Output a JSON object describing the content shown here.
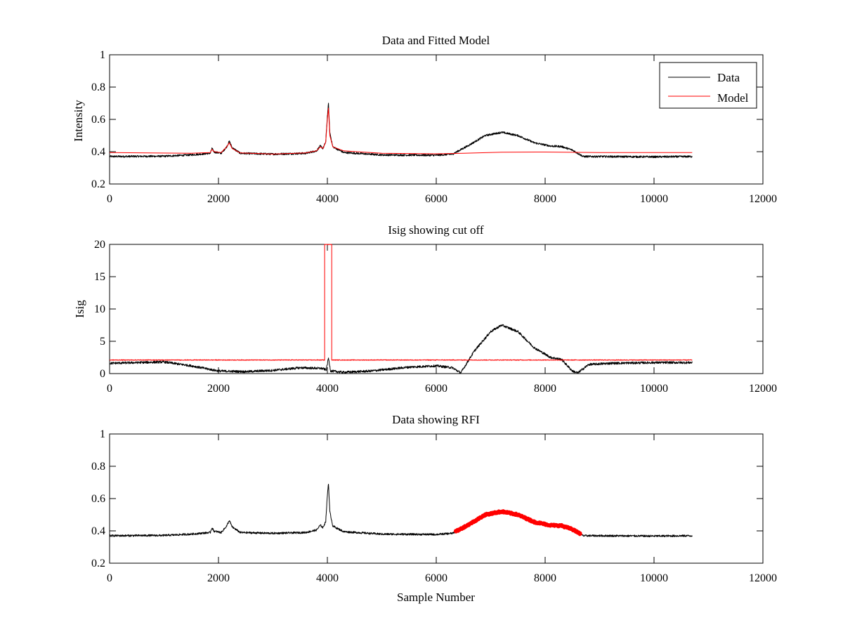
{
  "chart_data": [
    {
      "type": "line",
      "title": "Data and Fitted Model",
      "xlabel": "",
      "ylabel": "Intensity",
      "xlim": [
        0,
        12000
      ],
      "ylim": [
        0.2,
        1
      ],
      "xticks": [
        "0",
        "2000",
        "4000",
        "6000",
        "8000",
        "10000",
        "12000"
      ],
      "yticks": [
        "0.2",
        "0.4",
        "0.6",
        "0.8",
        "1"
      ],
      "legend": {
        "position": "top-right",
        "entries": [
          "Data",
          "Model"
        ]
      },
      "series": [
        {
          "name": "Data",
          "color": "#000000",
          "noise": 0.006,
          "points": [
            [
              0,
              0.37
            ],
            [
              1000,
              0.372
            ],
            [
              1500,
              0.38
            ],
            [
              1850,
              0.39
            ],
            [
              1880,
              0.42
            ],
            [
              1920,
              0.398
            ],
            [
              2050,
              0.39
            ],
            [
              2150,
              0.43
            ],
            [
              2200,
              0.465
            ],
            [
              2250,
              0.425
            ],
            [
              2400,
              0.39
            ],
            [
              3000,
              0.385
            ],
            [
              3600,
              0.39
            ],
            [
              3800,
              0.405
            ],
            [
              3870,
              0.435
            ],
            [
              3920,
              0.42
            ],
            [
              3970,
              0.46
            ],
            [
              4000,
              0.62
            ],
            [
              4020,
              0.695
            ],
            [
              4045,
              0.52
            ],
            [
              4100,
              0.43
            ],
            [
              4300,
              0.395
            ],
            [
              5000,
              0.38
            ],
            [
              6000,
              0.378
            ],
            [
              6300,
              0.385
            ],
            [
              6600,
              0.44
            ],
            [
              6900,
              0.5
            ],
            [
              7200,
              0.52
            ],
            [
              7500,
              0.5
            ],
            [
              7800,
              0.455
            ],
            [
              8100,
              0.435
            ],
            [
              8300,
              0.432
            ],
            [
              8500,
              0.41
            ],
            [
              8700,
              0.37
            ],
            [
              9000,
              0.37
            ],
            [
              10000,
              0.368
            ],
            [
              10700,
              0.37
            ]
          ]
        },
        {
          "name": "Model",
          "color": "#ff0000",
          "noise": 0,
          "points": [
            [
              0,
              0.395
            ],
            [
              1500,
              0.39
            ],
            [
              1850,
              0.395
            ],
            [
              1880,
              0.415
            ],
            [
              1920,
              0.4
            ],
            [
              2050,
              0.395
            ],
            [
              2150,
              0.43
            ],
            [
              2200,
              0.455
            ],
            [
              2250,
              0.42
            ],
            [
              2400,
              0.392
            ],
            [
              3000,
              0.385
            ],
            [
              3600,
              0.392
            ],
            [
              3800,
              0.405
            ],
            [
              3870,
              0.43
            ],
            [
              3920,
              0.42
            ],
            [
              3970,
              0.46
            ],
            [
              4000,
              0.6
            ],
            [
              4020,
              0.67
            ],
            [
              4045,
              0.5
            ],
            [
              4100,
              0.43
            ],
            [
              4300,
              0.405
            ],
            [
              5000,
              0.39
            ],
            [
              6000,
              0.387
            ],
            [
              6500,
              0.39
            ],
            [
              7200,
              0.397
            ],
            [
              8000,
              0.398
            ],
            [
              9000,
              0.395
            ],
            [
              10700,
              0.395
            ]
          ]
        }
      ]
    },
    {
      "type": "line",
      "title": "Isig showing cut off",
      "xlabel": "",
      "ylabel": "Isig",
      "xlim": [
        0,
        12000
      ],
      "ylim": [
        0,
        20
      ],
      "xticks": [
        "0",
        "2000",
        "4000",
        "6000",
        "8000",
        "10000",
        "12000"
      ],
      "yticks": [
        "0",
        "5",
        "10",
        "15",
        "20"
      ],
      "series": [
        {
          "color": "#000000",
          "noise": 0.18,
          "points": [
            [
              0,
              1.6
            ],
            [
              1000,
              1.8
            ],
            [
              1500,
              1.2
            ],
            [
              2000,
              0.4
            ],
            [
              2500,
              0.3
            ],
            [
              3000,
              0.5
            ],
            [
              3500,
              0.9
            ],
            [
              3900,
              0.8
            ],
            [
              3980,
              0.6
            ],
            [
              4020,
              2.4
            ],
            [
              4060,
              0.4
            ],
            [
              4300,
              0.2
            ],
            [
              4800,
              0.4
            ],
            [
              5500,
              1.0
            ],
            [
              6000,
              1.2
            ],
            [
              6300,
              0.9
            ],
            [
              6450,
              0.1
            ],
            [
              6700,
              3.5
            ],
            [
              7000,
              6.5
            ],
            [
              7200,
              7.5
            ],
            [
              7500,
              6.5
            ],
            [
              7800,
              4.0
            ],
            [
              8100,
              2.5
            ],
            [
              8300,
              2.2
            ],
            [
              8500,
              0.4
            ],
            [
              8600,
              0.1
            ],
            [
              8800,
              1.4
            ],
            [
              9200,
              1.6
            ],
            [
              10000,
              1.7
            ],
            [
              10700,
              1.7
            ]
          ]
        },
        {
          "color": "#ff0000",
          "noise": 0.05,
          "points": [
            [
              0,
              2.1
            ],
            [
              3950,
              2.1
            ],
            [
              3950,
              20
            ],
            [
              4080,
              20
            ],
            [
              4080,
              2.1
            ],
            [
              10700,
              2.1
            ]
          ]
        }
      ]
    },
    {
      "type": "line",
      "title": "Data showing RFI",
      "xlabel": "Sample Number",
      "ylabel": "",
      "xlim": [
        0,
        12000
      ],
      "ylim": [
        0.2,
        1
      ],
      "xticks": [
        "0",
        "2000",
        "4000",
        "6000",
        "8000",
        "10000",
        "12000"
      ],
      "yticks": [
        "0.2",
        "0.4",
        "0.6",
        "0.8",
        "1"
      ],
      "highlight": {
        "color": "#ff0000",
        "x_range": [
          6350,
          8650
        ]
      },
      "series": [
        {
          "color": "#000000",
          "noise": 0.006,
          "points": [
            [
              0,
              0.37
            ],
            [
              1000,
              0.372
            ],
            [
              1500,
              0.38
            ],
            [
              1850,
              0.39
            ],
            [
              1880,
              0.42
            ],
            [
              1920,
              0.398
            ],
            [
              2050,
              0.39
            ],
            [
              2150,
              0.43
            ],
            [
              2200,
              0.465
            ],
            [
              2250,
              0.425
            ],
            [
              2400,
              0.39
            ],
            [
              3000,
              0.385
            ],
            [
              3600,
              0.39
            ],
            [
              3800,
              0.405
            ],
            [
              3870,
              0.435
            ],
            [
              3920,
              0.42
            ],
            [
              3970,
              0.46
            ],
            [
              4000,
              0.62
            ],
            [
              4020,
              0.695
            ],
            [
              4045,
              0.52
            ],
            [
              4100,
              0.43
            ],
            [
              4300,
              0.395
            ],
            [
              5000,
              0.38
            ],
            [
              6000,
              0.378
            ],
            [
              6300,
              0.385
            ],
            [
              6600,
              0.44
            ],
            [
              6900,
              0.5
            ],
            [
              7200,
              0.52
            ],
            [
              7500,
              0.5
            ],
            [
              7800,
              0.455
            ],
            [
              8100,
              0.435
            ],
            [
              8300,
              0.432
            ],
            [
              8500,
              0.41
            ],
            [
              8700,
              0.37
            ],
            [
              9000,
              0.37
            ],
            [
              10000,
              0.368
            ],
            [
              10700,
              0.37
            ]
          ]
        }
      ]
    }
  ]
}
